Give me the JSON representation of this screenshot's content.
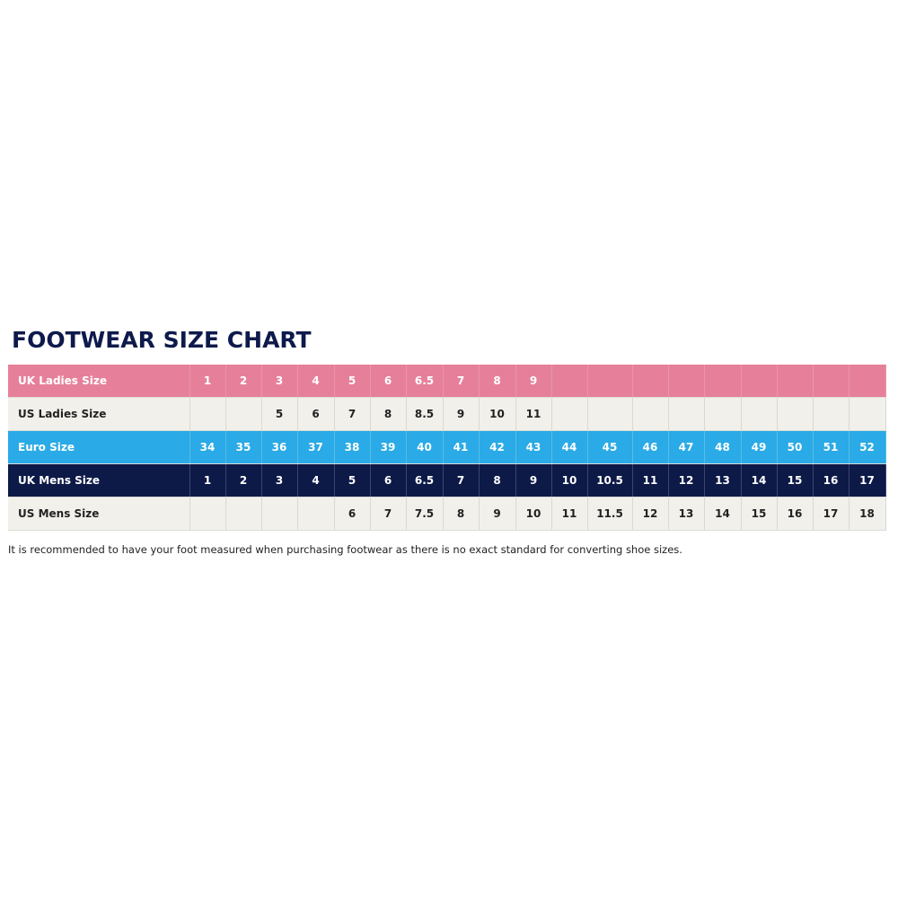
{
  "title": "FOOTWEAR SIZE CHART",
  "colors": {
    "uk_ladies": "#e6809a",
    "us_rows": "#f1f0eb",
    "euro": "#2aaae6",
    "uk_mens": "#0d1a48",
    "title": "#0e1a4b"
  },
  "rows": [
    {
      "label": "UK Ladies Size",
      "style": "pink",
      "values": [
        "1",
        "2",
        "3",
        "4",
        "5",
        "6",
        "6.5",
        "7",
        "8",
        "9",
        "",
        "",
        "",
        "",
        "",
        "",
        "",
        "",
        ""
      ]
    },
    {
      "label": "US Ladies Size",
      "style": "light",
      "values": [
        "",
        "",
        "5",
        "6",
        "7",
        "8",
        "8.5",
        "9",
        "10",
        "11",
        "",
        "",
        "",
        "",
        "",
        "",
        "",
        "",
        ""
      ]
    },
    {
      "label": "Euro Size",
      "style": "blue",
      "values": [
        "34",
        "35",
        "36",
        "37",
        "38",
        "39",
        "40",
        "41",
        "42",
        "43",
        "44",
        "45",
        "46",
        "47",
        "48",
        "49",
        "50",
        "51",
        "52"
      ]
    },
    {
      "label": "UK Mens Size",
      "style": "navy",
      "values": [
        "1",
        "2",
        "3",
        "4",
        "5",
        "6",
        "6.5",
        "7",
        "8",
        "9",
        "10",
        "10.5",
        "11",
        "12",
        "13",
        "14",
        "15",
        "16",
        "17"
      ]
    },
    {
      "label": "US Mens Size",
      "style": "light",
      "values": [
        "",
        "",
        "",
        "",
        "6",
        "7",
        "7.5",
        "8",
        "9",
        "10",
        "11",
        "11.5",
        "12",
        "13",
        "14",
        "15",
        "16",
        "17",
        "18"
      ]
    }
  ],
  "note": "It is recommended to have your foot measured when purchasing footwear as there is no exact standard for converting shoe sizes."
}
